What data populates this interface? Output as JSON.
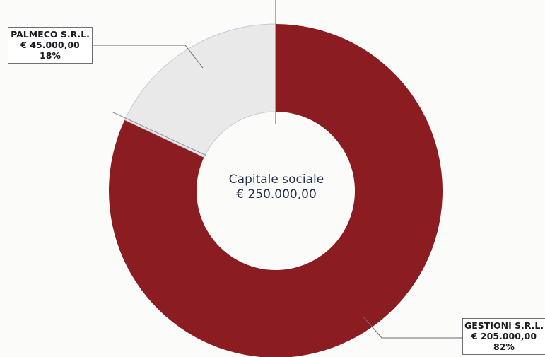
{
  "chart_data": {
    "type": "pie",
    "style": "donut",
    "title": "",
    "center_label": {
      "line1": "Capitale sociale",
      "line2": "€ 250.000,00"
    },
    "slices": [
      {
        "name": "PALMECO S.R.L.",
        "value": 45000,
        "amount_label": "€ 45.000,00",
        "percent_label": "18%",
        "color": "#e9e9ea"
      },
      {
        "name": "GESTIONI S.R.L.",
        "value": 205000,
        "amount_label": "€ 205.000,00",
        "percent_label": "82%",
        "color": "#8b1c22"
      }
    ],
    "legend": "none",
    "grid": false
  }
}
